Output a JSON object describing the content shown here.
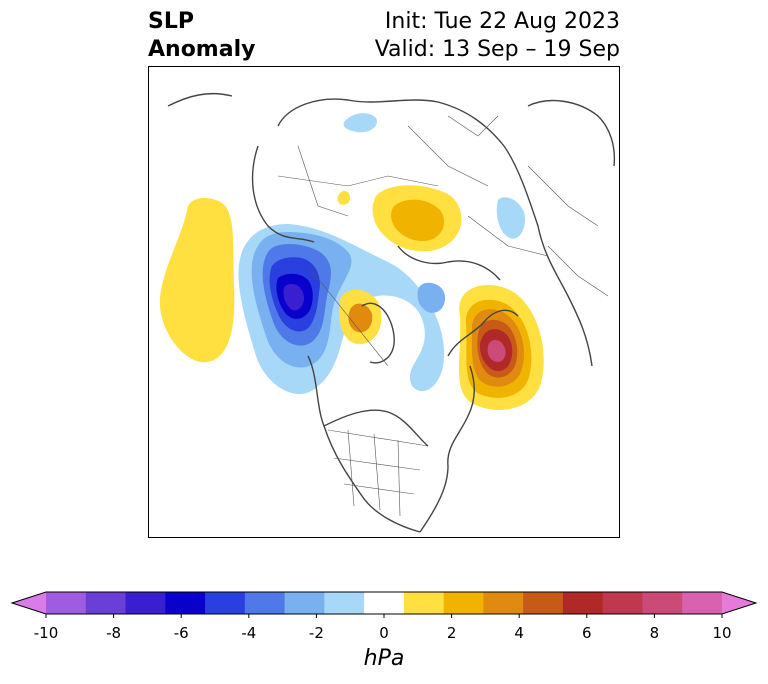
{
  "title": {
    "line1": "SLP",
    "line2": "Anomaly",
    "init": "Init: Tue 22 Aug 2023",
    "valid": "Valid: 13 Sep – 19 Sep"
  },
  "colorbar": {
    "unit": "hPa",
    "ticks": [
      "-10",
      "-8",
      "-6",
      "-4",
      "-2",
      "0",
      "2",
      "4",
      "6",
      "8",
      "10"
    ],
    "colors": [
      "#d97be8",
      "#a05ce0",
      "#6a3fd8",
      "#3a1fd0",
      "#0a00cc",
      "#2a3fe0",
      "#4f78e8",
      "#78b0f0",
      "#a8d8f8",
      "#ffffff",
      "#ffe040",
      "#f0b400",
      "#e08a10",
      "#c85a18",
      "#b02828",
      "#c03850",
      "#cc4a78",
      "#d862b0",
      "#e67ad8"
    ]
  },
  "map": {
    "anomalies": [
      {
        "label": "low-over-canada-pacific",
        "value": -7
      },
      {
        "label": "low-weak-ring-canada",
        "value": -2
      },
      {
        "label": "high-north-atlantic",
        "value": 7
      },
      {
        "label": "high-hudson-bay",
        "value": 3
      },
      {
        "label": "high-north-pacific",
        "value": 1
      },
      {
        "label": "high-siberia",
        "value": 2
      }
    ]
  }
}
